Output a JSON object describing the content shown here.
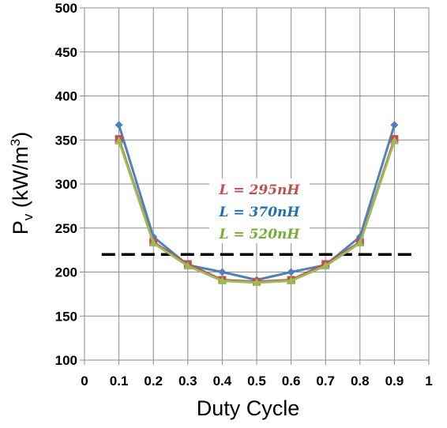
{
  "chart_data": {
    "type": "line",
    "xlabel": "Duty Cycle",
    "ylabel": "Pv (kW/m3)",
    "ylabel_parts": {
      "base": "P",
      "subscript": "v",
      "unit_open": " (kW/m",
      "superscript": "3",
      "unit_close": ")"
    },
    "xlim": [
      0,
      1
    ],
    "ylim": [
      100,
      500
    ],
    "xticks": [
      "0",
      "0.1",
      "0.2",
      "0.3",
      "0.4",
      "0.5",
      "0.6",
      "0.7",
      "0.8",
      "0.9",
      "1"
    ],
    "yticks": [
      "100",
      "150",
      "200",
      "250",
      "300",
      "350",
      "400",
      "450",
      "500"
    ],
    "grid": true,
    "legend_placement": "center",
    "reference_line": {
      "y": 220,
      "x_range": [
        0.05,
        0.95
      ],
      "style": "dashed",
      "color": "#000000"
    },
    "x": [
      0.1,
      0.2,
      0.3,
      0.4,
      0.5,
      0.6,
      0.7,
      0.8,
      0.9
    ],
    "series": [
      {
        "name": "L = 370nH",
        "color": "#4f81bd",
        "marker": "diamond",
        "values": [
          367,
          240,
          208,
          200,
          191,
          200,
          208,
          240,
          367
        ]
      },
      {
        "name": "L = 295nH",
        "color": "#c0504d",
        "marker": "square",
        "values": [
          351,
          234,
          209,
          191,
          189,
          191,
          209,
          234,
          351
        ]
      },
      {
        "name": "L = 520nH",
        "color": "#9bbb59",
        "marker": "triangle",
        "values": [
          349,
          233,
          207,
          190,
          188,
          190,
          207,
          233,
          349
        ]
      }
    ],
    "legend_entries": [
      {
        "label": "L = 295nH",
        "color": "#c0504d"
      },
      {
        "label": "L = 370nH",
        "color": "#1f6fb4"
      },
      {
        "label": "L = 520nH",
        "color": "#76ad3a"
      }
    ]
  }
}
